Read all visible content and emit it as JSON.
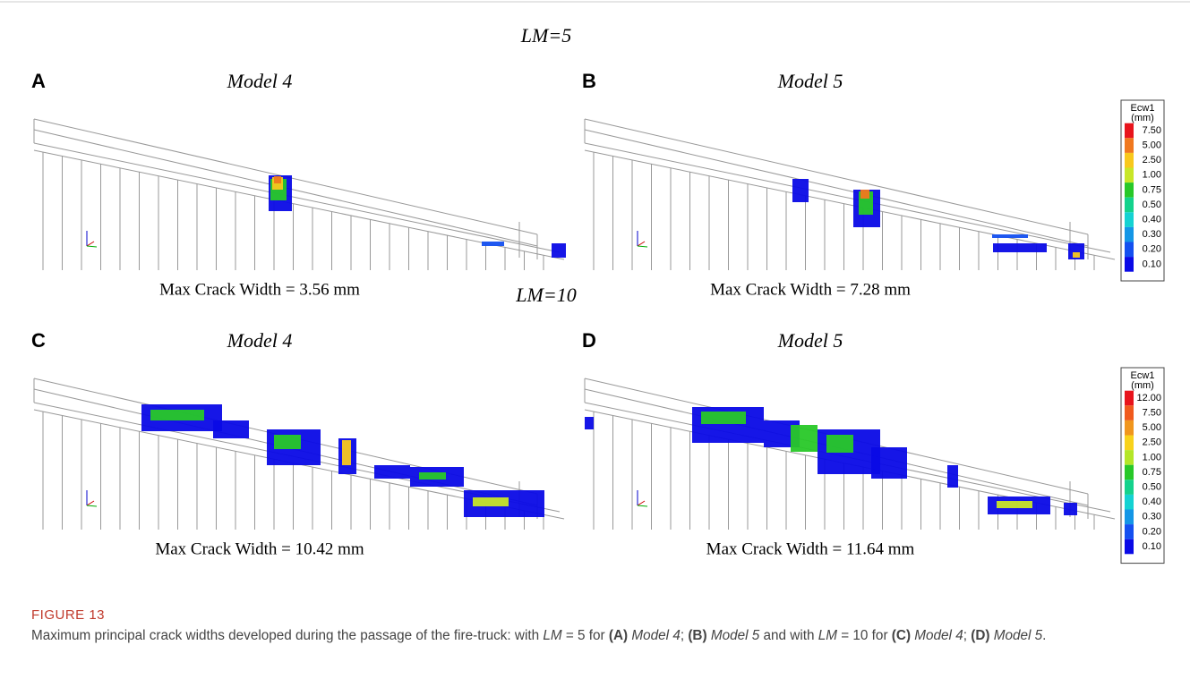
{
  "rows": [
    {
      "heading": "LM=5",
      "panels": [
        {
          "letter": "A",
          "model": "Model 4",
          "max_crack": "Max Crack Width = 3.56 mm"
        },
        {
          "letter": "B",
          "model": "Model 5",
          "max_crack": "Max Crack Width = 7.28 mm"
        }
      ],
      "legend": {
        "title": "Ecw1",
        "unit": "(mm)",
        "items": [
          {
            "label": "7.50",
            "color": "#e8141c"
          },
          {
            "label": "5.00",
            "color": "#f0781e"
          },
          {
            "label": "2.50",
            "color": "#f8c81c"
          },
          {
            "label": "1.00",
            "color": "#c8e628"
          },
          {
            "label": "0.75",
            "color": "#28c828"
          },
          {
            "label": "0.50",
            "color": "#14d28c"
          },
          {
            "label": "0.40",
            "color": "#14d2d2"
          },
          {
            "label": "0.30",
            "color": "#1496e6"
          },
          {
            "label": "0.20",
            "color": "#1450f0"
          },
          {
            "label": "0.10",
            "color": "#0a0ae6"
          }
        ]
      }
    },
    {
      "heading": "LM=10",
      "panels": [
        {
          "letter": "C",
          "model": "Model 4",
          "max_crack": "Max Crack Width = 10.42 mm"
        },
        {
          "letter": "D",
          "model": "Model 5",
          "max_crack": "Max Crack Width = 11.64 mm"
        }
      ],
      "legend": {
        "title": "Ecw1",
        "unit": "(mm)",
        "items": [
          {
            "label": "12.00",
            "color": "#e8141c"
          },
          {
            "label": "7.50",
            "color": "#f05a1e"
          },
          {
            "label": "5.00",
            "color": "#f0961e"
          },
          {
            "label": "2.50",
            "color": "#f8d21c"
          },
          {
            "label": "1.00",
            "color": "#b4e628"
          },
          {
            "label": "0.75",
            "color": "#28c828"
          },
          {
            "label": "0.50",
            "color": "#14d28c"
          },
          {
            "label": "0.40",
            "color": "#14d2d2"
          },
          {
            "label": "0.30",
            "color": "#1496e6"
          },
          {
            "label": "0.20",
            "color": "#1450f0"
          },
          {
            "label": "0.10",
            "color": "#0a0ae6"
          }
        ]
      }
    }
  ],
  "figure": {
    "label": "FIGURE 13",
    "caption": [
      {
        "text": "Maximum principal crack widths developed during the passage of the fire-truck: with ",
        "style": "normal"
      },
      {
        "text": "LM",
        "style": "italic"
      },
      {
        "text": " = 5 for ",
        "style": "normal"
      },
      {
        "text": "(A)",
        "style": "bold"
      },
      {
        "text": " Model 4",
        "style": "italic"
      },
      {
        "text": "; ",
        "style": "normal"
      },
      {
        "text": "(B)",
        "style": "bold"
      },
      {
        "text": " Model 5",
        "style": "italic"
      },
      {
        "text": " and with ",
        "style": "normal"
      },
      {
        "text": "LM",
        "style": "italic"
      },
      {
        "text": " = 10 for ",
        "style": "normal"
      },
      {
        "text": "(C)",
        "style": "bold"
      },
      {
        "text": " Model 4",
        "style": "italic"
      },
      {
        "text": "; ",
        "style": "normal"
      },
      {
        "text": "(D)",
        "style": "bold"
      },
      {
        "text": " Model 5",
        "style": "italic"
      },
      {
        "text": ".",
        "style": "normal"
      }
    ]
  }
}
